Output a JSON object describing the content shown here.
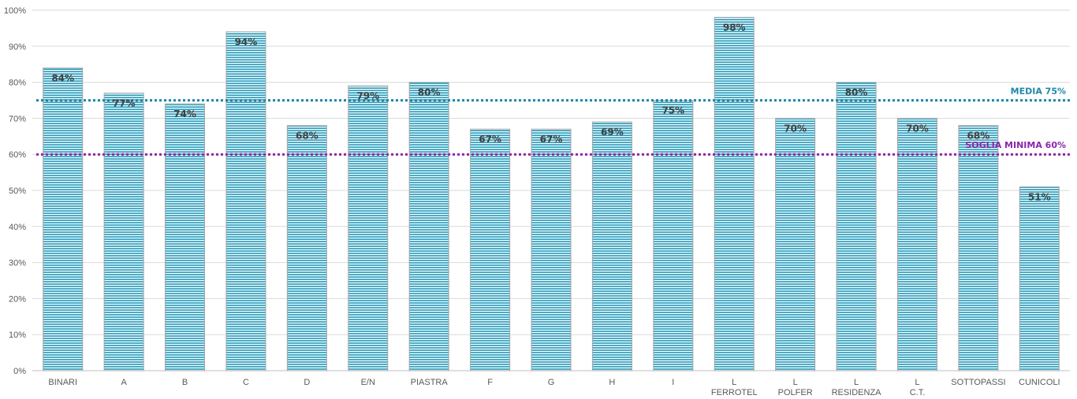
{
  "chart_data": {
    "type": "bar",
    "categories": [
      [
        "BINARI"
      ],
      [
        "A"
      ],
      [
        "B"
      ],
      [
        "C"
      ],
      [
        "D"
      ],
      [
        "E/N"
      ],
      [
        "PIASTRA"
      ],
      [
        "F"
      ],
      [
        "G"
      ],
      [
        "H"
      ],
      [
        "I"
      ],
      [
        "L",
        "FERROTEL"
      ],
      [
        "L",
        "POLFER"
      ],
      [
        "L",
        "RESIDENZA"
      ],
      [
        "L",
        "C.T."
      ],
      [
        "SOTTOPASSI"
      ],
      [
        "CUNICOLI"
      ]
    ],
    "values": [
      84,
      77,
      74,
      94,
      68,
      79,
      80,
      67,
      67,
      69,
      75,
      98,
      70,
      80,
      70,
      68,
      51
    ],
    "data_labels": [
      "84%",
      "77%",
      "74%",
      "94%",
      "68%",
      "79%",
      "80%",
      "67%",
      "67%",
      "69%",
      "75%",
      "98%",
      "70%",
      "80%",
      "70%",
      "68%",
      "51%"
    ],
    "ylim": [
      0,
      100
    ],
    "yticks": [
      0,
      10,
      20,
      30,
      40,
      50,
      60,
      70,
      80,
      90,
      100
    ],
    "ytick_labels": [
      "0%",
      "10%",
      "20%",
      "30%",
      "40%",
      "50%",
      "60%",
      "70%",
      "80%",
      "90%",
      "100%"
    ],
    "grid": true,
    "bar_color": "#4bacc6",
    "bar_stripe_color": "#ffffff",
    "reference_lines": [
      {
        "label": "MEDIA 75%",
        "value": 75,
        "color": "#1e88a8"
      },
      {
        "label": "SOGLIA MINIMA 60%",
        "value": 60,
        "color": "#8e24aa"
      }
    ]
  }
}
